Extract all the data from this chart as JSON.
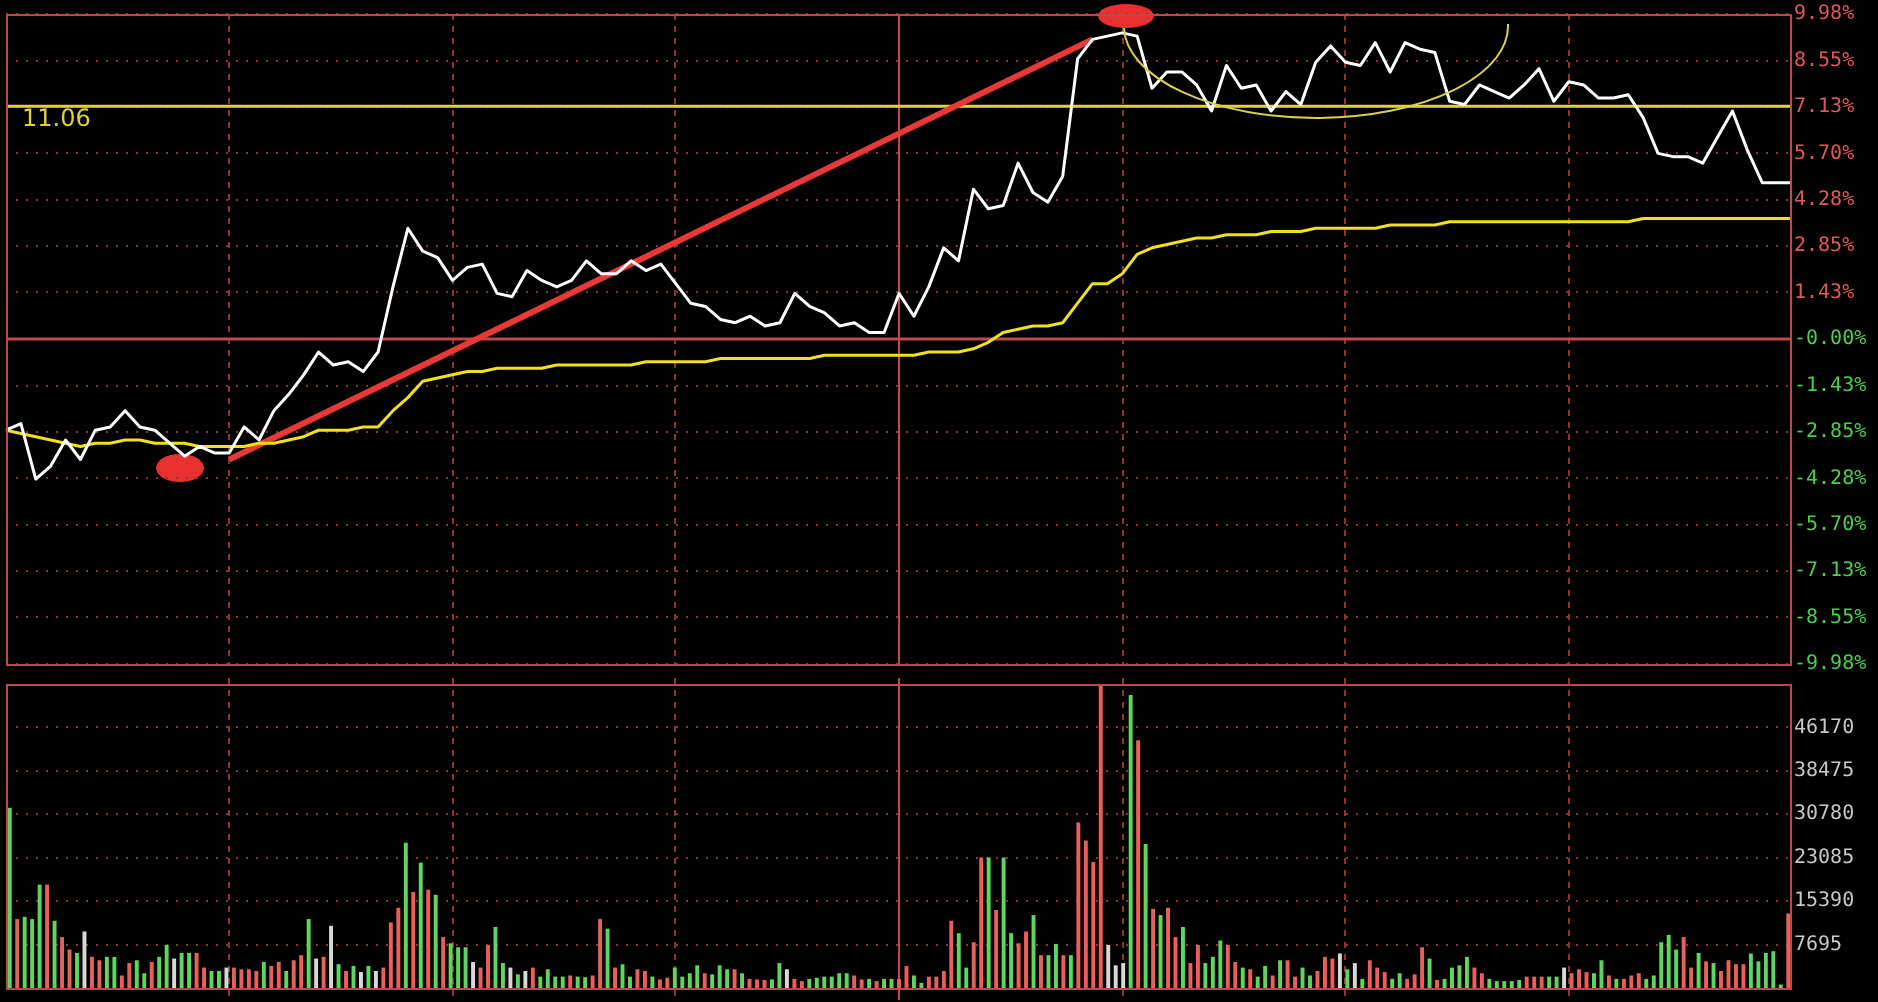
{
  "chart_data": [
    {
      "type": "line",
      "categories": [
        null,
        null,
        null,
        null,
        null,
        null,
        null,
        null,
        null,
        null,
        null,
        null,
        null,
        null,
        null,
        null,
        null,
        null,
        null,
        null,
        null,
        null,
        null,
        null,
        null,
        null,
        null,
        null,
        null,
        null,
        null,
        null,
        null,
        null,
        null,
        null,
        null,
        null,
        null,
        null,
        null,
        null,
        null,
        null,
        null,
        null,
        null,
        null,
        null,
        null,
        null,
        null,
        null,
        null,
        null,
        null,
        null,
        null,
        null,
        null,
        null,
        null,
        null,
        null,
        null,
        null,
        null,
        null,
        null,
        null,
        null,
        null,
        null,
        null,
        null,
        null,
        null,
        null,
        null,
        null,
        null,
        null,
        null,
        null,
        null,
        null,
        null,
        null,
        null,
        null,
        null,
        null,
        null,
        null,
        null,
        null,
        null,
        null,
        null,
        null,
        null,
        null,
        null,
        null,
        null,
        null,
        null,
        null,
        null,
        null,
        null,
        null,
        null,
        null,
        null,
        null,
        null,
        null,
        null,
        null,
        null
      ],
      "series": [
        {
          "color": "#ffffff",
          "values": [
            -2.8,
            -2.6,
            -4.3,
            -3.9,
            -3.1,
            -3.7,
            -2.8,
            -2.7,
            -2.2,
            -2.7,
            -2.8,
            -3.2,
            -3.6,
            -3.3,
            -3.5,
            -3.5,
            -2.7,
            -3.1,
            -2.2,
            -1.7,
            -1.1,
            -0.4,
            -0.8,
            -0.7,
            -1.0,
            -0.4,
            1.6,
            3.4,
            2.7,
            2.5,
            1.8,
            2.2,
            2.3,
            1.4,
            1.3,
            2.1,
            1.8,
            1.6,
            1.8,
            2.4,
            2.0,
            2.0,
            2.4,
            2.1,
            2.3,
            1.7,
            1.1,
            1.0,
            0.6,
            0.5,
            0.7,
            0.4,
            0.5,
            1.4,
            1.0,
            0.8,
            0.4,
            0.5,
            0.2,
            0.2,
            1.4,
            0.7,
            1.6,
            2.8,
            2.4,
            4.6,
            4.0,
            4.1,
            5.4,
            4.5,
            4.2,
            5.0,
            8.6,
            9.2,
            9.3,
            9.4,
            9.3,
            7.7,
            8.2,
            8.2,
            7.8,
            7.0,
            8.4,
            7.7,
            7.8,
            7.0,
            7.6,
            7.2,
            8.5,
            9.0,
            8.5,
            8.4,
            9.1,
            8.2,
            9.1,
            8.9,
            8.8,
            7.3,
            7.2,
            7.8,
            7.6,
            7.4,
            7.8,
            8.3,
            7.3,
            7.9,
            7.8,
            7.4,
            7.4,
            7.5,
            6.8,
            5.7,
            5.6,
            5.6,
            5.4,
            6.2,
            7.0,
            5.8,
            4.8,
            4.8,
            4.8
          ]
        },
        {
          "color": "#f0e020",
          "values": [
            -2.8,
            -2.9,
            -3.0,
            -3.1,
            -3.2,
            -3.3,
            -3.2,
            -3.2,
            -3.1,
            -3.1,
            -3.2,
            -3.2,
            -3.2,
            -3.3,
            -3.3,
            -3.3,
            -3.3,
            -3.2,
            -3.2,
            -3.1,
            -3.0,
            -2.8,
            -2.8,
            -2.8,
            -2.7,
            -2.7,
            -2.2,
            -1.8,
            -1.3,
            -1.2,
            -1.1,
            -1.0,
            -1.0,
            -0.9,
            -0.9,
            -0.9,
            -0.9,
            -0.8,
            -0.8,
            -0.8,
            -0.8,
            -0.8,
            -0.8,
            -0.7,
            -0.7,
            -0.7,
            -0.7,
            -0.7,
            -0.6,
            -0.6,
            -0.6,
            -0.6,
            -0.6,
            -0.6,
            -0.6,
            -0.5,
            -0.5,
            -0.5,
            -0.5,
            -0.5,
            -0.5,
            -0.5,
            -0.4,
            -0.4,
            -0.4,
            -0.3,
            -0.1,
            0.2,
            0.3,
            0.4,
            0.4,
            0.5,
            1.1,
            1.7,
            1.7,
            2.0,
            2.6,
            2.8,
            2.9,
            3.0,
            3.1,
            3.1,
            3.2,
            3.2,
            3.2,
            3.3,
            3.3,
            3.3,
            3.4,
            3.4,
            3.4,
            3.4,
            3.4,
            3.5,
            3.5,
            3.5,
            3.5,
            3.6,
            3.6,
            3.6,
            3.6,
            3.6,
            3.6,
            3.6,
            3.6,
            3.6,
            3.6,
            3.6,
            3.6,
            3.6,
            3.7,
            3.7,
            3.7,
            3.7,
            3.7,
            3.7,
            3.7,
            3.7,
            3.7,
            3.7,
            3.7
          ]
        },
        {
          "color": "#e83838",
          "values": [
            null,
            null,
            null,
            null,
            null,
            null,
            null,
            null,
            null,
            null,
            null,
            null,
            null,
            null,
            null,
            -3.7,
            null,
            null,
            null,
            null,
            null,
            null,
            null,
            null,
            null,
            null,
            null,
            null,
            null,
            null,
            null,
            null,
            null,
            null,
            null,
            null,
            null,
            null,
            null,
            null,
            null,
            null,
            null,
            null,
            null,
            null,
            null,
            null,
            null,
            null,
            null,
            null,
            null,
            null,
            null,
            null,
            null,
            null,
            null,
            null,
            null,
            null,
            null,
            null,
            null,
            null,
            null,
            null,
            null,
            null,
            null,
            null,
            null,
            9.2,
            null,
            null,
            null,
            null,
            null,
            null,
            null,
            null,
            null,
            null,
            null,
            null,
            null,
            null,
            null,
            null,
            null,
            null,
            null,
            null,
            null,
            null,
            null,
            null,
            null,
            null,
            null,
            null,
            null,
            null,
            null,
            null,
            null,
            null,
            null,
            null,
            null,
            null,
            null,
            null,
            null,
            null,
            null,
            null,
            null,
            null,
            null
          ]
        }
      ],
      "ylim": [
        -9.98,
        9.98
      ],
      "yticks": [
        {
          "value": 9.98,
          "label": "9.98%"
        },
        {
          "value": 8.55,
          "label": "8.55%"
        },
        {
          "value": 7.13,
          "label": "7.13%"
        },
        {
          "value": 5.7,
          "label": "5.70%"
        },
        {
          "value": 4.28,
          "label": "4.28%"
        },
        {
          "value": 2.85,
          "label": "2.85%"
        },
        {
          "value": 1.43,
          "label": "1.43%"
        },
        {
          "value": 0,
          "label": "-0.00%"
        },
        {
          "value": -1.43,
          "label": "-1.43%"
        },
        {
          "value": -2.85,
          "label": "-2.85%"
        },
        {
          "value": -4.28,
          "label": "-4.28%"
        },
        {
          "value": -5.7,
          "label": "-5.70%"
        },
        {
          "value": -7.13,
          "label": "-7.13%"
        },
        {
          "value": -8.55,
          "label": "-8.55%"
        },
        {
          "value": -9.98,
          "label": "-9.98%"
        }
      ],
      "tick_labels": "y",
      "grid": "y",
      "legend": false,
      "marker": "none",
      "line_style": "solid",
      "annotations": [
        "11.06"
      ],
      "ref_lines": [
        {
          "axis": "y",
          "value": 7.15,
          "color": "#e0d040"
        },
        {
          "axis": "y",
          "value": 0,
          "color": "#c04848"
        }
      ]
    },
    {
      "type": "bar",
      "categories": [
        null,
        null,
        null,
        null,
        null,
        null,
        null,
        null,
        null,
        null,
        null,
        null,
        null,
        null,
        null,
        null,
        null,
        null,
        null,
        null,
        null,
        null,
        null,
        null,
        null,
        null,
        null,
        null,
        null,
        null,
        null,
        null,
        null,
        null,
        null,
        null,
        null,
        null,
        null,
        null,
        null,
        null,
        null,
        null,
        null,
        null,
        null,
        null,
        null,
        null,
        null,
        null,
        null,
        null,
        null,
        null,
        null,
        null,
        null,
        null,
        null,
        null,
        null,
        null,
        null,
        null,
        null,
        null,
        null,
        null,
        null,
        null,
        null,
        null,
        null,
        null,
        null,
        null,
        null,
        null,
        null,
        null,
        null,
        null,
        null,
        null,
        null,
        null,
        null,
        null,
        null,
        null,
        null,
        null,
        null,
        null,
        null,
        null,
        null,
        null,
        null,
        null,
        null,
        null,
        null,
        null,
        null,
        null,
        null,
        null,
        null,
        null,
        null,
        null,
        null,
        null,
        null,
        null,
        null,
        null,
        null,
        null,
        null,
        null,
        null,
        null,
        null,
        null,
        null,
        null,
        null,
        null,
        null,
        null,
        null,
        null,
        null,
        null,
        null,
        null,
        null,
        null,
        null,
        null,
        null,
        null,
        null,
        null,
        null,
        null,
        null,
        null,
        null,
        null,
        null,
        null,
        null,
        null,
        null,
        null,
        null,
        null,
        null,
        null,
        null,
        null,
        null,
        null,
        null,
        null,
        null,
        null,
        null,
        null,
        null,
        null,
        null,
        null,
        null,
        null,
        null,
        null,
        null,
        null,
        null,
        null,
        null,
        null,
        null,
        null,
        null,
        null,
        null,
        null,
        null,
        null,
        null,
        null,
        null,
        null,
        null,
        null,
        null,
        null,
        null,
        null,
        null,
        null,
        null,
        null,
        null,
        null,
        null,
        null,
        null,
        null,
        null,
        null,
        null,
        null,
        null,
        null,
        null,
        null,
        null,
        null,
        null,
        null,
        null,
        null,
        null,
        null,
        null,
        null,
        null,
        null,
        null,
        null,
        null
      ],
      "values": [
        31800,
        12100,
        12500,
        12100,
        18200,
        18200,
        11800,
        8900,
        6700,
        6100,
        9900,
        5400,
        4800,
        5400,
        5400,
        2100,
        4300,
        4800,
        2500,
        4500,
        5400,
        7500,
        5100,
        6100,
        6100,
        6100,
        3500,
        2900,
        2900,
        3500,
        3500,
        3200,
        3200,
        2900,
        4500,
        3800,
        4500,
        2900,
        4800,
        5700,
        12100,
        5100,
        5400,
        10900,
        4100,
        2900,
        3800,
        2700,
        3800,
        2900,
        3500,
        11500,
        14100,
        25600,
        16900,
        22100,
        17300,
        16400,
        8900,
        7800,
        7100,
        7100,
        4500,
        3500,
        7500,
        10700,
        4300,
        3500,
        2300,
        2900,
        3500,
        1900,
        3200,
        1900,
        1900,
        2100,
        1900,
        1800,
        2100,
        12100,
        10400,
        3500,
        4100,
        1900,
        3200,
        2900,
        1900,
        1400,
        1700,
        3500,
        1900,
        2500,
        3900,
        2500,
        2300,
        3900,
        3200,
        3200,
        2500,
        1500,
        1400,
        1300,
        1400,
        4300,
        3200,
        1500,
        1100,
        1500,
        1700,
        1900,
        1900,
        2500,
        2500,
        2100,
        1400,
        1500,
        1100,
        1500,
        1500,
        1500,
        3800,
        2100,
        800,
        1900,
        1900,
        2900,
        11800,
        9600,
        3500,
        8000,
        23000,
        23000,
        13700,
        23000,
        9600,
        7800,
        9900,
        12800,
        5700,
        5700,
        7700,
        5700,
        5700,
        29200,
        26000,
        22200,
        53800,
        7500,
        3900,
        4300,
        51800,
        43800,
        25400,
        13900,
        12800,
        14100,
        8900,
        10700,
        4300,
        7500,
        4300,
        5400,
        8300,
        7500,
        4500,
        3500,
        3200,
        1900,
        3800,
        2100,
        4800,
        4800,
        1900,
        3500,
        2100,
        2900,
        5400,
        5100,
        6000,
        3200,
        4300,
        1500,
        4800,
        3500,
        2700,
        1500,
        2500,
        1500,
        2300,
        7100,
        5100,
        1300,
        1500,
        3500,
        3900,
        5400,
        3500,
        2500,
        1500,
        1100,
        1100,
        1100,
        1300,
        1900,
        1900,
        1900,
        1900,
        1900,
        3500,
        2500,
        3200,
        2700,
        2500,
        4800,
        2100,
        1500,
        1500,
        2100,
        2500,
        1500,
        2100,
        8000,
        9300,
        6700,
        8900,
        3500,
        6100,
        4600,
        4300,
        2900,
        4800,
        4100,
        4100,
        6000,
        4600,
        6100,
        6400,
        500,
        13100
      ],
      "colors": [
        "#5cd65c",
        "#e8605c",
        "#5cd65c",
        "#5cd65c",
        "#5cd65c",
        "#e8605c",
        "#5cd65c",
        "#e8605c",
        "#e8605c",
        "#5cd65c",
        "#d8d8d8",
        "#e8605c",
        "#e8605c",
        "#5cd65c",
        "#5cd65c",
        "#e8605c",
        "#e8605c",
        "#5cd65c",
        "#5cd65c",
        "#e8605c",
        "#5cd65c",
        "#5cd65c",
        "#d8d8d8",
        "#5cd65c",
        "#5cd65c",
        "#e8605c",
        "#e8605c",
        "#5cd65c",
        "#5cd65c",
        "#d8d8d8",
        "#e8605c",
        "#e8605c",
        "#e8605c",
        "#e8605c",
        "#5cd65c",
        "#e8605c",
        "#e8605c",
        "#5cd65c",
        "#e8605c",
        "#e8605c",
        "#5cd65c",
        "#d8d8d8",
        "#e8605c",
        "#d8d8d8",
        "#5cd65c",
        "#e8605c",
        "#5cd65c",
        "#d8d8d8",
        "#5cd65c",
        "#d8d8d8",
        "#e8605c",
        "#e8605c",
        "#e8605c",
        "#5cd65c",
        "#e8605c",
        "#5cd65c",
        "#e8605c",
        "#5cd65c",
        "#e8605c",
        "#5cd65c",
        "#5cd65c",
        "#5cd65c",
        "#d8d8d8",
        "#e8605c",
        "#e8605c",
        "#5cd65c",
        "#5cd65c",
        "#d8d8d8",
        "#5cd65c",
        "#d8d8d8",
        "#e8605c",
        "#5cd65c",
        "#5cd65c",
        "#5cd65c",
        "#5cd65c",
        "#e8605c",
        "#5cd65c",
        "#5cd65c",
        "#e8605c",
        "#e8605c",
        "#5cd65c",
        "#e8605c",
        "#5cd65c",
        "#5cd65c",
        "#e8605c",
        "#e8605c",
        "#5cd65c",
        "#e8605c",
        "#e8605c",
        "#5cd65c",
        "#5cd65c",
        "#5cd65c",
        "#5cd65c",
        "#e8605c",
        "#5cd65c",
        "#5cd65c",
        "#5cd65c",
        "#e8605c",
        "#5cd65c",
        "#e8605c",
        "#e8605c",
        "#e8605c",
        "#5cd65c",
        "#5cd65c",
        "#d8d8d8",
        "#e8605c",
        "#e8605c",
        "#5cd65c",
        "#5cd65c",
        "#5cd65c",
        "#5cd65c",
        "#5cd65c",
        "#5cd65c",
        "#e8605c",
        "#e8605c",
        "#5cd65c",
        "#e8605c",
        "#5cd65c",
        "#5cd65c",
        "#e8605c",
        "#e8605c",
        "#5cd65c",
        "#5cd65c",
        "#e8605c",
        "#e8605c",
        "#e8605c",
        "#e8605c",
        "#5cd65c",
        "#5cd65c",
        "#e8605c",
        "#e8605c",
        "#5cd65c",
        "#e8605c",
        "#5cd65c",
        "#5cd65c",
        "#e8605c",
        "#e8605c",
        "#5cd65c",
        "#e8605c",
        "#5cd65c",
        "#5cd65c",
        "#e8605c",
        "#5cd65c",
        "#e8605c",
        "#e8605c",
        "#e8605c",
        "#e8605c",
        "#d8d8d8",
        "#d8d8d8",
        "#d8d8d8",
        "#5cd65c",
        "#e8605c",
        "#5cd65c",
        "#e8605c",
        "#5cd65c",
        "#e8605c",
        "#e8605c",
        "#5cd65c",
        "#e8605c",
        "#e8605c",
        "#5cd65c",
        "#5cd65c",
        "#5cd65c",
        "#e8605c",
        "#e8605c",
        "#5cd65c",
        "#e8605c",
        "#5cd65c",
        "#5cd65c",
        "#e8605c",
        "#5cd65c",
        "#e8605c",
        "#e8605c",
        "#5cd65c",
        "#5cd65c",
        "#e8605c",
        "#e8605c",
        "#e8605c",
        "#d8d8d8",
        "#5cd65c",
        "#d8d8d8",
        "#5cd65c",
        "#e8605c",
        "#e8605c",
        "#e8605c",
        "#5cd65c",
        "#5cd65c",
        "#e8605c",
        "#e8605c",
        "#e8605c",
        "#5cd65c",
        "#e8605c",
        "#5cd65c",
        "#5cd65c",
        "#5cd65c",
        "#5cd65c",
        "#e8605c",
        "#e8605c",
        "#5cd65c",
        "#5cd65c",
        "#5cd65c",
        "#5cd65c",
        "#5cd65c",
        "#e8605c",
        "#e8605c",
        "#e8605c",
        "#5cd65c",
        "#5cd65c",
        "#d8d8d8",
        "#e8605c",
        "#e8605c",
        "#e8605c",
        "#5cd65c",
        "#5cd65c",
        "#e8605c",
        "#5cd65c",
        "#e8605c",
        "#e8605c",
        "#e8605c",
        "#5cd65c",
        "#5cd65c",
        "#5cd65c",
        "#5cd65c",
        "#5cd65c",
        "#e8605c",
        "#e8605c",
        "#5cd65c",
        "#e8605c",
        "#5cd65c",
        "#e8605c",
        "#e8605c",
        "#e8605c",
        "#e8605c",
        "#5cd65c",
        "#5cd65c",
        "#5cd65c",
        "#5cd65c",
        "#5cd65c",
        "#e8605c"
      ],
      "ylim": [
        0,
        53865
      ],
      "yticks": [
        7695,
        15390,
        23085,
        30780,
        38475,
        46170
      ],
      "tick_labels": "y",
      "grid": "y",
      "legend": false
    }
  ]
}
